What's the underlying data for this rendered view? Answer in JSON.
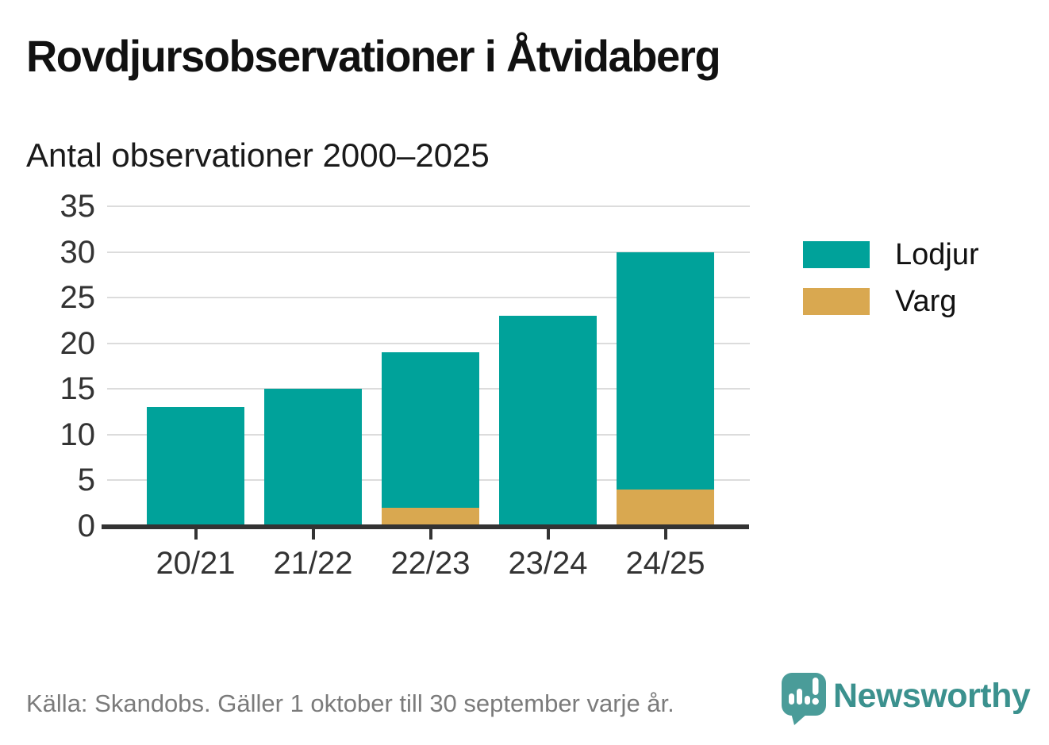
{
  "header": {
    "title": "Rovdjursobservationer i Åtvidaberg",
    "subtitle": "Antal observationer 2000–2025"
  },
  "chart_data": {
    "type": "bar",
    "stacked": true,
    "title": "Rovdjursobservationer i Åtvidaberg",
    "subtitle": "Antal observationer 2000–2025",
    "categories": [
      "20/21",
      "21/22",
      "22/23",
      "23/24",
      "24/25"
    ],
    "series": [
      {
        "name": "Lodjur",
        "color": "#00A29A",
        "values": [
          13,
          15,
          17,
          23,
          26
        ]
      },
      {
        "name": "Varg",
        "color": "#D9A850",
        "values": [
          0,
          0,
          2,
          0,
          4
        ]
      }
    ],
    "stack_totals": [
      13,
      15,
      19,
      23,
      30
    ],
    "xlabel": "",
    "ylabel": "",
    "ylim": [
      0,
      35
    ],
    "yticks": [
      0,
      5,
      10,
      15,
      20,
      25,
      30,
      35
    ],
    "grid": true,
    "legend_position": "right"
  },
  "footer": {
    "source": "Källa: Skandobs. Gäller 1 oktober till 30 september varje år.",
    "brand": "Newsworthy"
  },
  "colors": {
    "background": "#FFFFFF",
    "title_text": "#111111",
    "axis_text": "#333333",
    "axis_line": "#333333",
    "gridline": "#DCDCDC",
    "source_text": "#7B7B7B",
    "brand_teal": "#3B918E",
    "logo_bubble": "#4A9C99"
  },
  "icons": {
    "newsworthy_logo": "speech-bubble-bar-chart-exclamation-icon"
  }
}
